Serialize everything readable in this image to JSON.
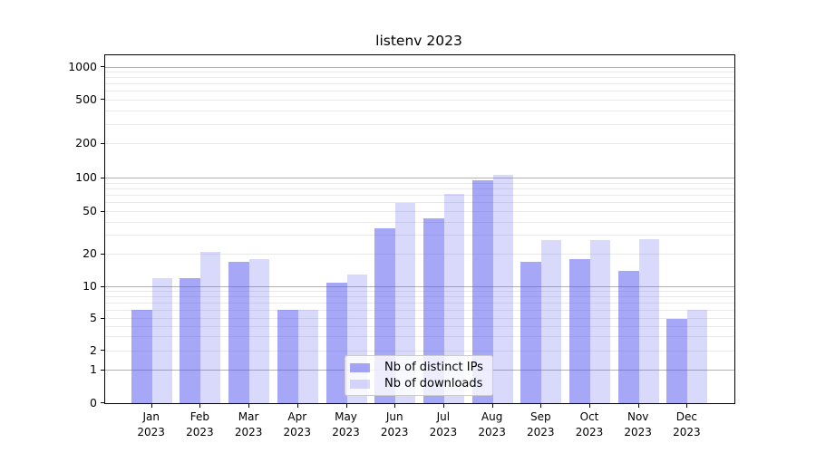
{
  "chart_data": {
    "type": "bar",
    "title": "listenv 2023",
    "categories": [
      "Jan",
      "Feb",
      "Mar",
      "Apr",
      "May",
      "Jun",
      "Jul",
      "Aug",
      "Sep",
      "Oct",
      "Nov",
      "Dec"
    ],
    "x_tick_line2": "2023",
    "series": [
      {
        "name": "Nb of distinct IPs",
        "color": "#5050f080",
        "values": [
          6,
          12,
          17,
          6,
          11,
          35,
          43,
          97,
          17,
          18,
          14,
          5
        ]
      },
      {
        "name": "Nb of downloads",
        "color": "#5050f038",
        "values": [
          12,
          21,
          18,
          6,
          13,
          60,
          72,
          108,
          27,
          27,
          28,
          6
        ]
      }
    ],
    "y_ticks": [
      0,
      1,
      2,
      5,
      10,
      20,
      50,
      100,
      200,
      500,
      1000
    ],
    "y_scale": "symlog",
    "ylim": [
      0,
      1300
    ],
    "grid": {
      "orientation": "horizontal",
      "major_color": "#b2b2b2",
      "minor_color": "#e9e9e9"
    },
    "legend": {
      "position": "lower-center"
    }
  }
}
